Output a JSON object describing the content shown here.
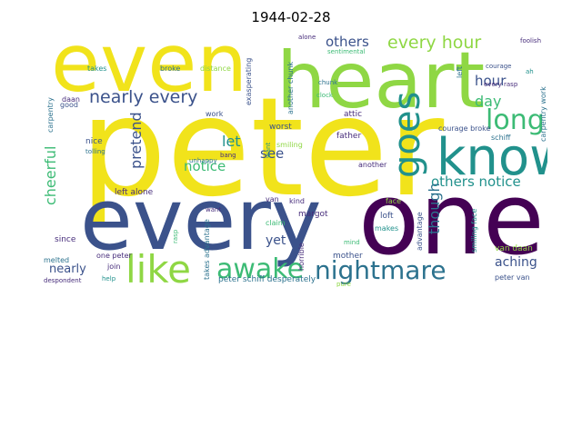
{
  "title": "1944-02-28",
  "palette": {
    "yellow": "#f1e31b",
    "lime": "#8fd744",
    "green": "#3cbb75",
    "teal": "#21918c",
    "blue": "#2c728e",
    "indigo": "#3b528b",
    "violet": "#472d7b",
    "dark": "#440154"
  },
  "words": [
    {
      "text": "peter",
      "color": "yellow"
    },
    {
      "text": "every",
      "color": "indigo"
    },
    {
      "text": "one",
      "color": "dark"
    },
    {
      "text": "heart",
      "color": "lime"
    },
    {
      "text": "even",
      "color": "yellow"
    },
    {
      "text": "know",
      "color": "teal"
    },
    {
      "text": "like",
      "color": "lime"
    },
    {
      "text": "awake",
      "color": "green"
    },
    {
      "text": "nightmare",
      "color": "blue"
    },
    {
      "text": "goes",
      "color": "teal"
    },
    {
      "text": "long",
      "color": "green"
    },
    {
      "text": "every hour",
      "color": "lime"
    },
    {
      "text": "nearly every",
      "color": "indigo"
    },
    {
      "text": "others",
      "color": "indigo"
    },
    {
      "text": "hour",
      "color": "indigo"
    },
    {
      "text": "day",
      "color": "green"
    },
    {
      "text": "pretend",
      "color": "indigo"
    },
    {
      "text": "cheerful",
      "color": "green"
    },
    {
      "text": "let",
      "color": "teal"
    },
    {
      "text": "see",
      "color": "indigo"
    },
    {
      "text": "notice",
      "color": "green"
    },
    {
      "text": "others notice",
      "color": "teal"
    },
    {
      "text": "though",
      "color": "blue"
    },
    {
      "text": "yet",
      "color": "indigo"
    },
    {
      "text": "nearly",
      "color": "indigo"
    },
    {
      "text": "aching",
      "color": "indigo"
    },
    {
      "text": "left alone",
      "color": "violet"
    },
    {
      "text": "one peter",
      "color": "violet"
    },
    {
      "text": "margot",
      "color": "violet"
    },
    {
      "text": "kind",
      "color": "violet"
    },
    {
      "text": "worst",
      "color": "indigo"
    },
    {
      "text": "father",
      "color": "violet"
    },
    {
      "text": "attic",
      "color": "violet"
    },
    {
      "text": "another",
      "color": "violet"
    },
    {
      "text": "loft",
      "color": "indigo"
    },
    {
      "text": "makes",
      "color": "teal"
    },
    {
      "text": "van daan",
      "color": "lime"
    },
    {
      "text": "peter van",
      "color": "indigo"
    },
    {
      "text": "peter schiff desperately",
      "color": "blue"
    },
    {
      "text": "since",
      "color": "violet"
    },
    {
      "text": "melted",
      "color": "blue"
    },
    {
      "text": "join",
      "color": "violet"
    },
    {
      "text": "help",
      "color": "teal"
    },
    {
      "text": "despondent",
      "color": "violet"
    },
    {
      "text": "mother",
      "color": "indigo"
    },
    {
      "text": "mind",
      "color": "green"
    },
    {
      "text": "pure",
      "color": "lime"
    },
    {
      "text": "horrible",
      "color": "violet"
    },
    {
      "text": "takes advantage",
      "color": "blue"
    },
    {
      "text": "claim",
      "color": "green"
    },
    {
      "text": "smiling",
      "color": "lime"
    },
    {
      "text": "smiling face",
      "color": "teal"
    },
    {
      "text": "advantage",
      "color": "indigo"
    },
    {
      "text": "face",
      "color": "lime"
    },
    {
      "text": "every rasp",
      "color": "violet"
    },
    {
      "text": "courage broke",
      "color": "indigo"
    },
    {
      "text": "schiff",
      "color": "blue"
    },
    {
      "text": "carpentry work",
      "color": "blue"
    },
    {
      "text": "courage",
      "color": "indigo"
    },
    {
      "text": "foolish",
      "color": "violet"
    },
    {
      "text": "sentimental",
      "color": "green"
    },
    {
      "text": "ah",
      "color": "teal"
    },
    {
      "text": "left",
      "color": "blue"
    },
    {
      "text": "alone",
      "color": "violet"
    },
    {
      "text": "another chunk",
      "color": "blue"
    },
    {
      "text": "chunk",
      "color": "blue"
    },
    {
      "text": "clock",
      "color": "green"
    },
    {
      "text": "exasperating",
      "color": "indigo"
    },
    {
      "text": "takes",
      "color": "teal"
    },
    {
      "text": "broke",
      "color": "blue"
    },
    {
      "text": "distance",
      "color": "lime"
    },
    {
      "text": "carpentry",
      "color": "blue"
    },
    {
      "text": "daan",
      "color": "violet"
    },
    {
      "text": "good",
      "color": "indigo"
    },
    {
      "text": "work",
      "color": "indigo"
    },
    {
      "text": "nice",
      "color": "indigo"
    },
    {
      "text": "tolling",
      "color": "blue"
    },
    {
      "text": "bang",
      "color": "violet"
    },
    {
      "text": "unhappy",
      "color": "blue"
    },
    {
      "text": "want",
      "color": "violet"
    },
    {
      "text": "want",
      "color": "teal"
    },
    {
      "text": "van",
      "color": "violet"
    },
    {
      "text": "rasp",
      "color": "green"
    }
  ]
}
